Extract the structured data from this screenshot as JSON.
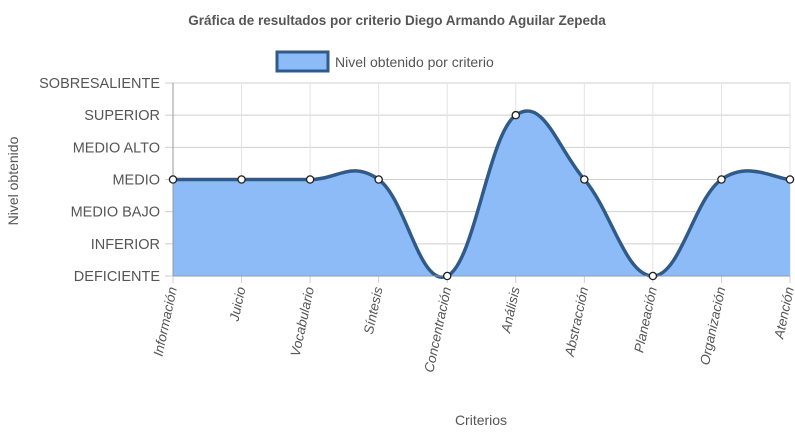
{
  "chart_data": {
    "type": "line",
    "title": "Gráfica de resultados por criterio Diego Armando Aguilar Zepeda",
    "xlabel": "Criterios",
    "ylabel": "Nivel obtenido",
    "levels": [
      "DEFICIENTE",
      "INFERIOR",
      "MEDIO BAJO",
      "MEDIO",
      "MEDIO ALTO",
      "SUPERIOR",
      "SOBRESALIENTE"
    ],
    "categories": [
      "Información",
      "Juicio",
      "Vocabulario",
      "Síntesis",
      "Concentración",
      "Análisis",
      "Abstracción",
      "Planeación",
      "Organización",
      "Atención"
    ],
    "series": [
      {
        "name": "Nivel obtenido por criterio",
        "values": [
          "MEDIO",
          "MEDIO",
          "MEDIO",
          "MEDIO",
          "DEFICIENTE",
          "SUPERIOR",
          "MEDIO",
          "DEFICIENTE",
          "MEDIO",
          "MEDIO"
        ],
        "fill_color": "#8cbbf7",
        "line_color": "#2f5a8c"
      }
    ],
    "ylim": [
      "DEFICIENTE",
      "SOBRESALIENTE"
    ],
    "grid": true,
    "legend_position": "top-center",
    "smooth": true
  }
}
